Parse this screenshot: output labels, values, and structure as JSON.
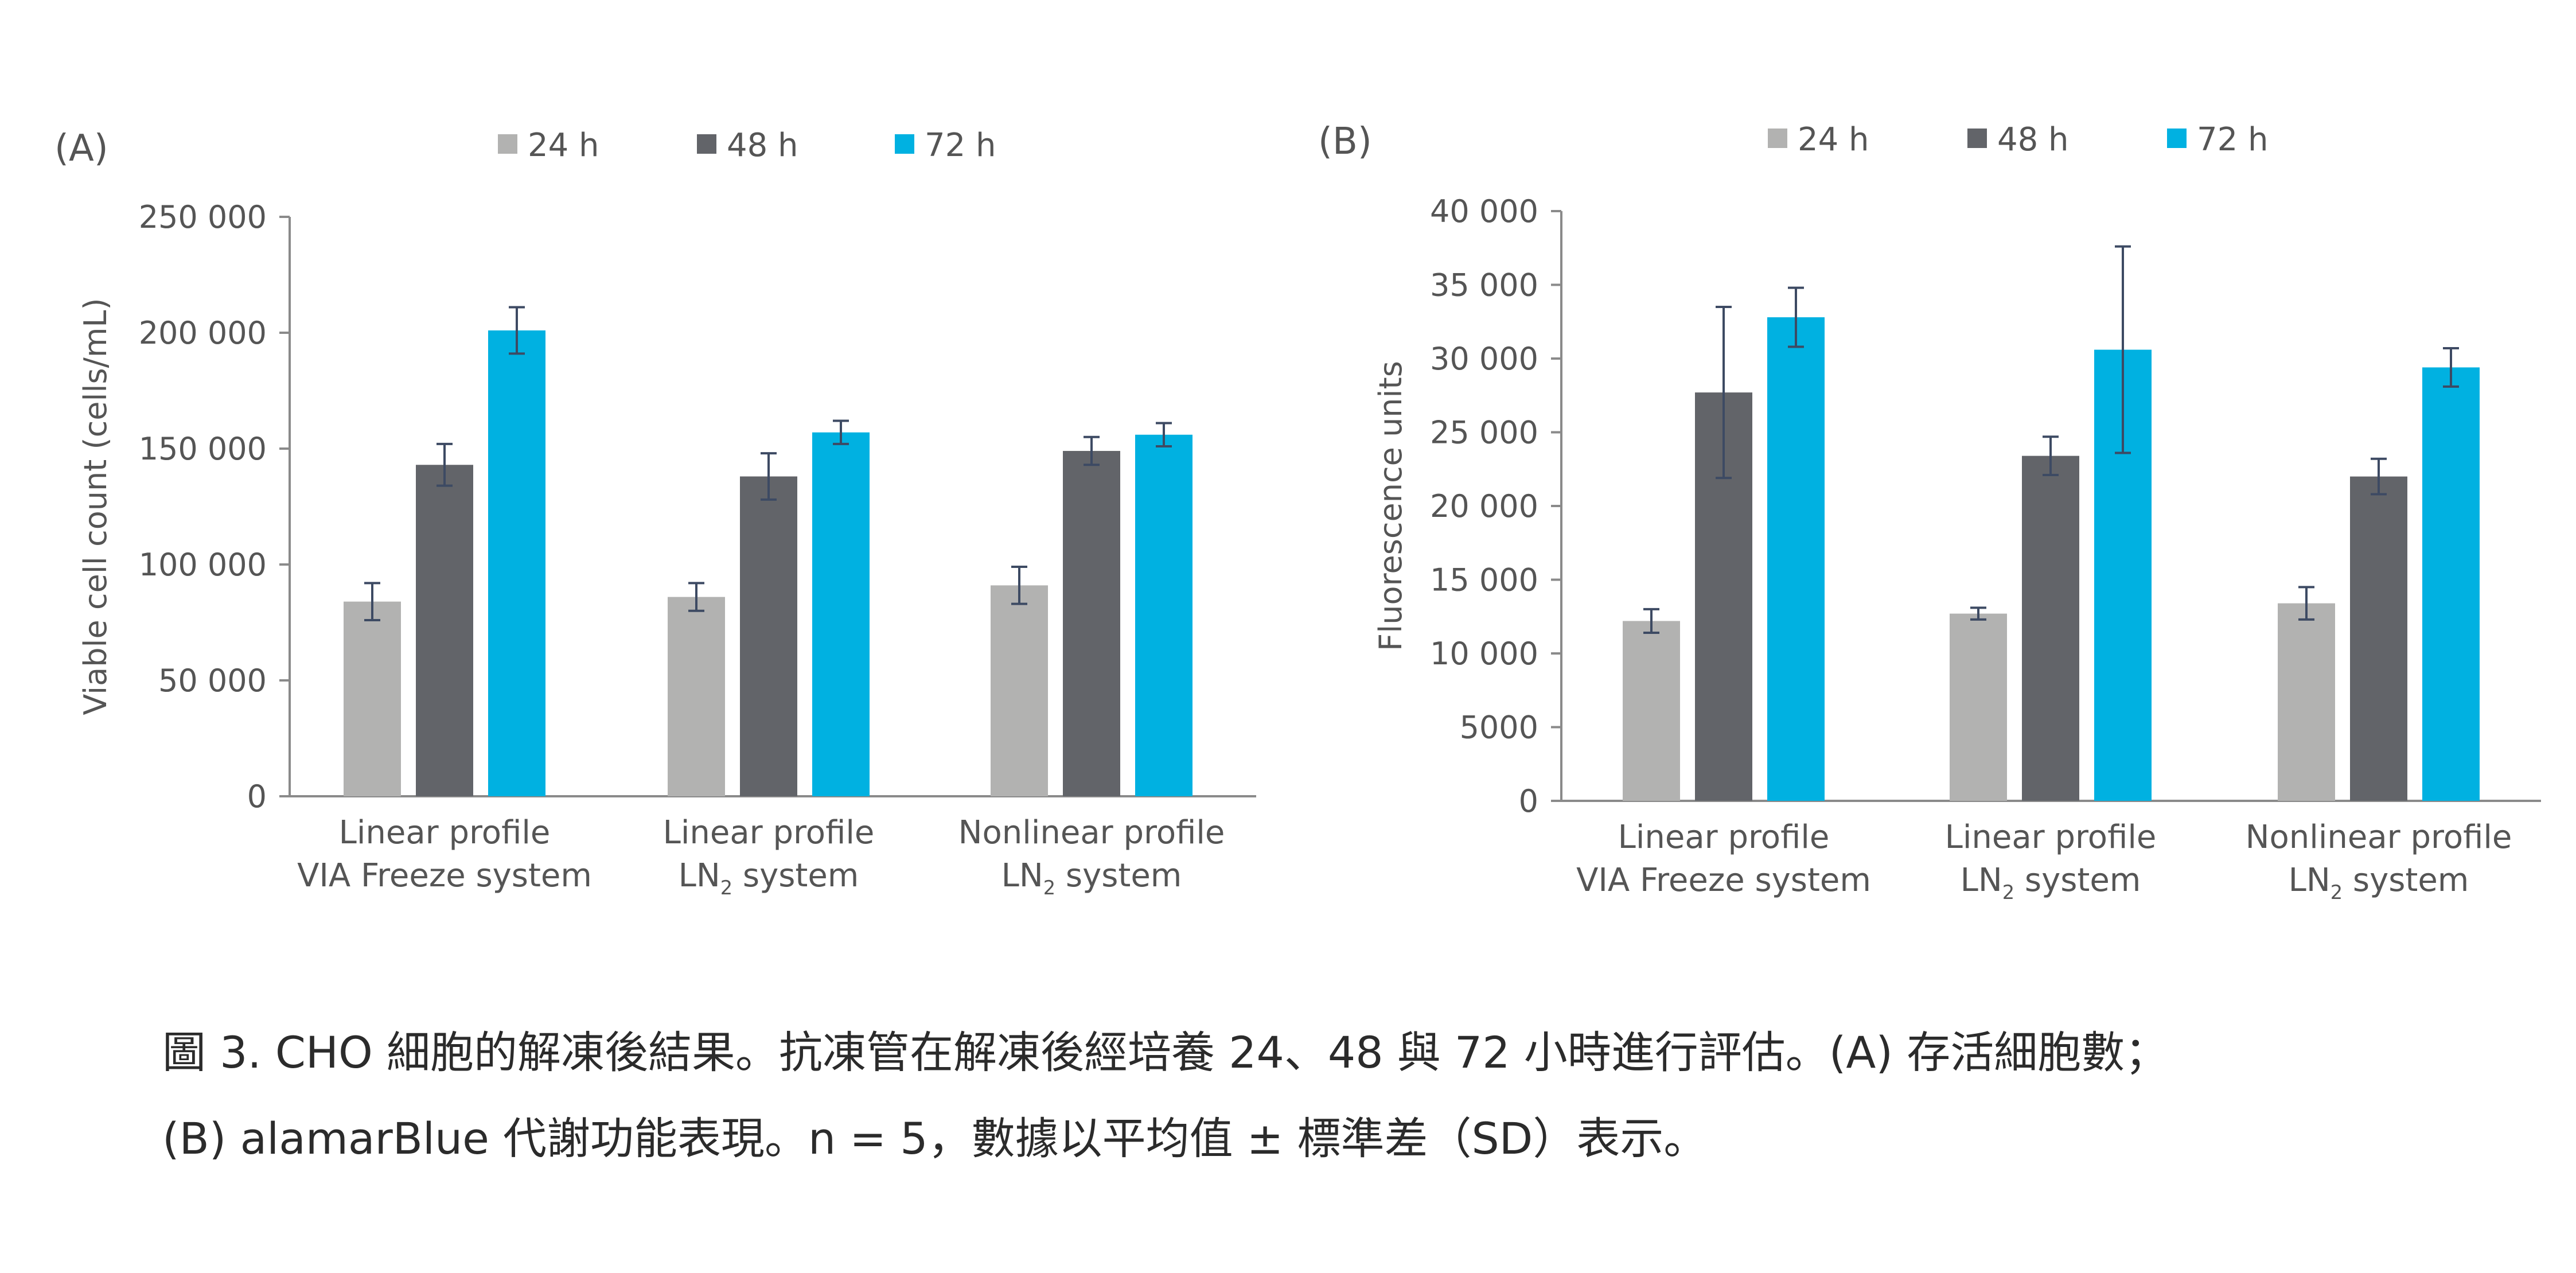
{
  "figure": {
    "caption_lines": [
      "圖 3. CHO 細胞的解凍後結果。抗凍管在解凍後經培養 24、48 與 72 小時進行評估。(A) 存活細胞數；",
      "(B) alamarBlue 代謝功能表現。n = 5，數據以平均值 ± 標準差（SD）表示。"
    ]
  },
  "colors": {
    "24 h": "#b2b2b1",
    "48 h": "#626469",
    "72 h": "#00b1e1",
    "axis": "#8a8a8a",
    "text": "#555555",
    "error_bar": "#3d4a63"
  },
  "chart_data": [
    {
      "type": "bar",
      "panel_label": "(A)",
      "ylabel": "Viable cell count (cells/mL)",
      "xlabel": "",
      "ylim": [
        0,
        250000
      ],
      "yticks": [
        0,
        50000,
        100000,
        150000,
        200000,
        250000
      ],
      "ytick_labels": [
        "0",
        "50 000",
        "100 000",
        "150 000",
        "200 000",
        "250 000"
      ],
      "legend_position": "top-center",
      "grid": false,
      "categories": [
        [
          "Linear profile",
          "VIA Freeze system"
        ],
        [
          "Linear profile",
          "LN|2| system"
        ],
        [
          "Nonlinear profile",
          "LN|2| system"
        ]
      ],
      "series": [
        {
          "name": "24 h",
          "values": [
            84000,
            86000,
            91000
          ],
          "errors": [
            8000,
            6000,
            8000
          ]
        },
        {
          "name": "48 h",
          "values": [
            143000,
            138000,
            149000
          ],
          "errors": [
            9000,
            10000,
            6000
          ]
        },
        {
          "name": "72 h",
          "values": [
            201000,
            157000,
            156000
          ],
          "errors": [
            10000,
            5000,
            5000
          ]
        }
      ]
    },
    {
      "type": "bar",
      "panel_label": "(B)",
      "ylabel": "Fluorescence units",
      "xlabel": "",
      "ylim": [
        0,
        40000
      ],
      "yticks": [
        0,
        5000,
        10000,
        15000,
        20000,
        25000,
        30000,
        35000,
        40000
      ],
      "ytick_labels": [
        "0",
        "5000",
        "10 000",
        "15 000",
        "20 000",
        "25 000",
        "30 000",
        "35 000",
        "40 000"
      ],
      "legend_position": "top-center",
      "grid": false,
      "categories": [
        [
          "Linear profile",
          "VIA Freeze system"
        ],
        [
          "Linear profile",
          "LN|2| system"
        ],
        [
          "Nonlinear profile",
          "LN|2| system"
        ]
      ],
      "series": [
        {
          "name": "24 h",
          "values": [
            12200,
            12700,
            13400
          ],
          "errors": [
            800,
            400,
            1100
          ]
        },
        {
          "name": "48 h",
          "values": [
            27700,
            23400,
            22000
          ],
          "errors": [
            5800,
            1300,
            1200
          ]
        },
        {
          "name": "72 h",
          "values": [
            32800,
            30600,
            29400
          ],
          "errors": [
            2000,
            7000,
            1300
          ]
        }
      ]
    }
  ]
}
